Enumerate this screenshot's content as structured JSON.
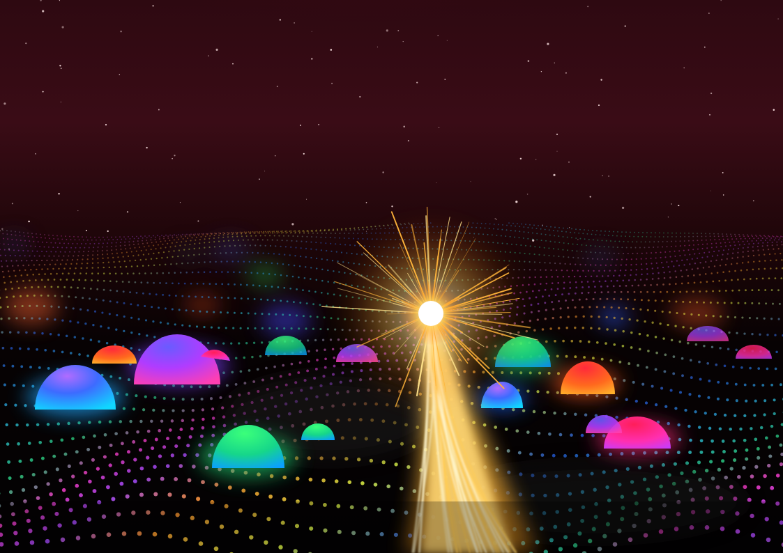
{
  "scene": {
    "colors": {
      "sky_top": "#3a0d17",
      "sky_glow": "#7a1224",
      "sky_mid": "#1a0508",
      "ground": "#050304",
      "burst_core": "#ffffff",
      "burst_gold": "#ffc64a",
      "burst_orange": "#ff8a1a",
      "dot_palette": [
        "#32d6ff",
        "#2fe08a",
        "#ff3fd2",
        "#a64bff",
        "#ff9a2e",
        "#e6ff4a",
        "#2b6bff"
      ]
    },
    "elements": {
      "stars": "star-field",
      "grid": "dotted-wave-grid",
      "domes": "glowing-domes",
      "burst": "light-burst",
      "beam": "light-beam"
    }
  }
}
